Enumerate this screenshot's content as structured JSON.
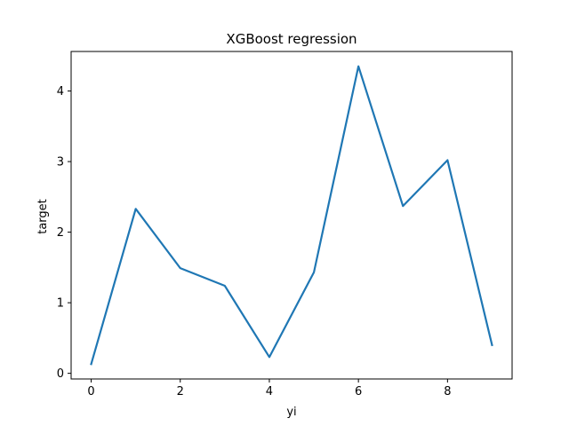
{
  "chart_data": {
    "type": "line",
    "title": "XGBoost regression",
    "xlabel": "yi",
    "ylabel": "target",
    "x": [
      0,
      1,
      2,
      3,
      4,
      5,
      6,
      7,
      8,
      9
    ],
    "series": [
      {
        "values": [
          0.13,
          2.33,
          1.49,
          1.24,
          0.23,
          1.43,
          4.35,
          2.37,
          3.02,
          0.4
        ],
        "color": "#1f77b4"
      }
    ],
    "xlim": [
      -0.45,
      9.45
    ],
    "ylim": [
      -0.08,
      4.56
    ],
    "xticks": [
      0,
      2,
      4,
      6,
      8
    ],
    "yticks": [
      0,
      1,
      2,
      3,
      4
    ],
    "grid": false,
    "legend": "none"
  }
}
